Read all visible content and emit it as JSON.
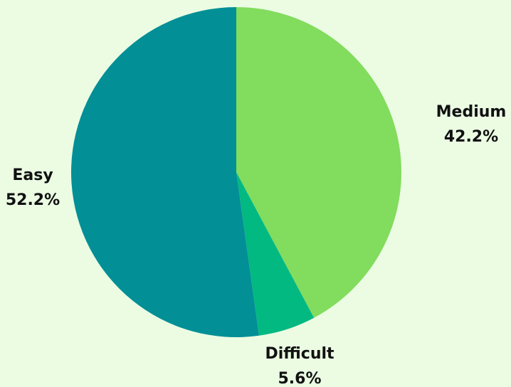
{
  "chart_data": {
    "type": "pie",
    "title": "",
    "slices": [
      {
        "label": "Medium",
        "value": 42.2,
        "value_label": "42.2%",
        "color": "#82DC5E"
      },
      {
        "label": "Difficult",
        "value": 5.6,
        "value_label": "5.6%",
        "color": "#02B982"
      },
      {
        "label": "Easy",
        "value": 52.2,
        "value_label": "52.2%",
        "color": "#028F96"
      }
    ],
    "start_angle": "12 o'clock",
    "direction": "clockwise",
    "background_color": "#EBFCE3"
  }
}
